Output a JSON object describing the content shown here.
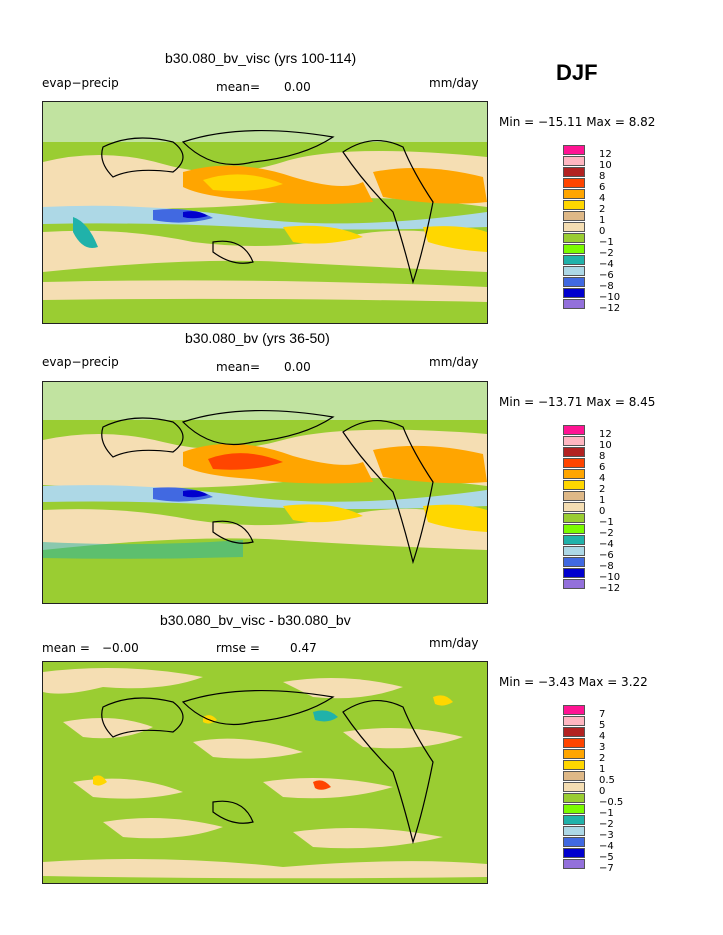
{
  "season": "DJF",
  "panels": [
    {
      "title": "b30.080_bv_visc (yrs 100-114)",
      "left_label": "evap−precip",
      "mean_label": "mean=",
      "mean_value": "0.00",
      "units": "mm/day",
      "stats": "Min = −15.11 Max =    8.82",
      "legend": {
        "levels": [
          "12",
          "10",
          "8",
          "6",
          "4",
          "2",
          "1",
          "0",
          "−1",
          "−2",
          "−4",
          "−6",
          "−8",
          "−10",
          "−12"
        ],
        "colors": [
          "#ff1493",
          "#ffb6c1",
          "#b22222",
          "#ff4500",
          "#ffa500",
          "#ffd700",
          "#deb887",
          "#f5deb3",
          "#9acd32",
          "#7cfc00",
          "#20b2aa",
          "#add8e6",
          "#4169e1",
          "#0000cd",
          "#9370db"
        ]
      }
    },
    {
      "title": "b30.080_bv (yrs 36-50)",
      "left_label": "evap−precip",
      "mean_label": "mean=",
      "mean_value": "0.00",
      "units": "mm/day",
      "stats": "Min = −13.71 Max =    8.45",
      "legend": {
        "levels": [
          "12",
          "10",
          "8",
          "6",
          "4",
          "2",
          "1",
          "0",
          "−1",
          "−2",
          "−4",
          "−6",
          "−8",
          "−10",
          "−12"
        ],
        "colors": [
          "#ff1493",
          "#ffb6c1",
          "#b22222",
          "#ff4500",
          "#ffa500",
          "#ffd700",
          "#deb887",
          "#f5deb3",
          "#9acd32",
          "#7cfc00",
          "#20b2aa",
          "#add8e6",
          "#4169e1",
          "#0000cd",
          "#9370db"
        ]
      }
    },
    {
      "title": "b30.080_bv_visc - b30.080_bv",
      "left_label": "mean =",
      "left_value": "−0.00",
      "mean_label": "rmse =",
      "mean_value": "0.47",
      "units": "mm/day",
      "stats": "Min =   −3.43 Max =    3.22",
      "legend": {
        "levels": [
          "7",
          "5",
          "4",
          "3",
          "2",
          "1",
          "0.5",
          "0",
          "−0.5",
          "−1",
          "−2",
          "−3",
          "−4",
          "−5",
          "−7"
        ],
        "colors": [
          "#ff1493",
          "#ffb6c1",
          "#b22222",
          "#ff4500",
          "#ffa500",
          "#ffd700",
          "#deb887",
          "#f5deb3",
          "#9acd32",
          "#7cfc00",
          "#20b2aa",
          "#add8e6",
          "#4169e1",
          "#0000cd",
          "#9370db"
        ]
      }
    }
  ],
  "chart_data": {
    "type": "heatmap",
    "title": "DJF evap−precip (mm/day)",
    "series": [
      {
        "name": "b30.080_bv_visc (yrs 100-114)",
        "mean": 0.0,
        "min": -15.11,
        "max": 8.82
      },
      {
        "name": "b30.080_bv (yrs 36-50)",
        "mean": 0.0,
        "min": -13.71,
        "max": 8.45
      },
      {
        "name": "b30.080_bv_visc - b30.080_bv",
        "mean": -0.0,
        "rmse": 0.47,
        "min": -3.43,
        "max": 3.22
      }
    ],
    "xlabel": "",
    "ylabel": ""
  }
}
